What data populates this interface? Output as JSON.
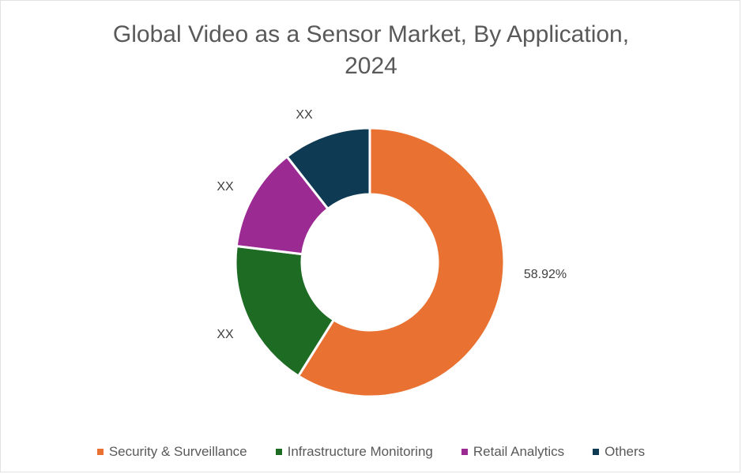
{
  "chart_data": {
    "type": "pie",
    "variant": "donut",
    "title_lines": [
      "Global Video as a Sensor Market, By Application,",
      "2024"
    ],
    "slices": [
      {
        "name": "Security & Surveillance",
        "value": 58.92,
        "label": "58.92%",
        "color": "#E97132"
      },
      {
        "name": "Infrastructure Monitoring",
        "value": 18.0,
        "label": "XX",
        "color": "#1E6B24"
      },
      {
        "name": "Retail Analytics",
        "value": 12.5,
        "label": "XX",
        "color": "#9C2A93"
      },
      {
        "name": "Others",
        "value": 10.58,
        "label": "XX",
        "color": "#0E3A53"
      }
    ],
    "legend_position": "bottom",
    "start_angle_deg": 0,
    "direction": "clockwise"
  }
}
